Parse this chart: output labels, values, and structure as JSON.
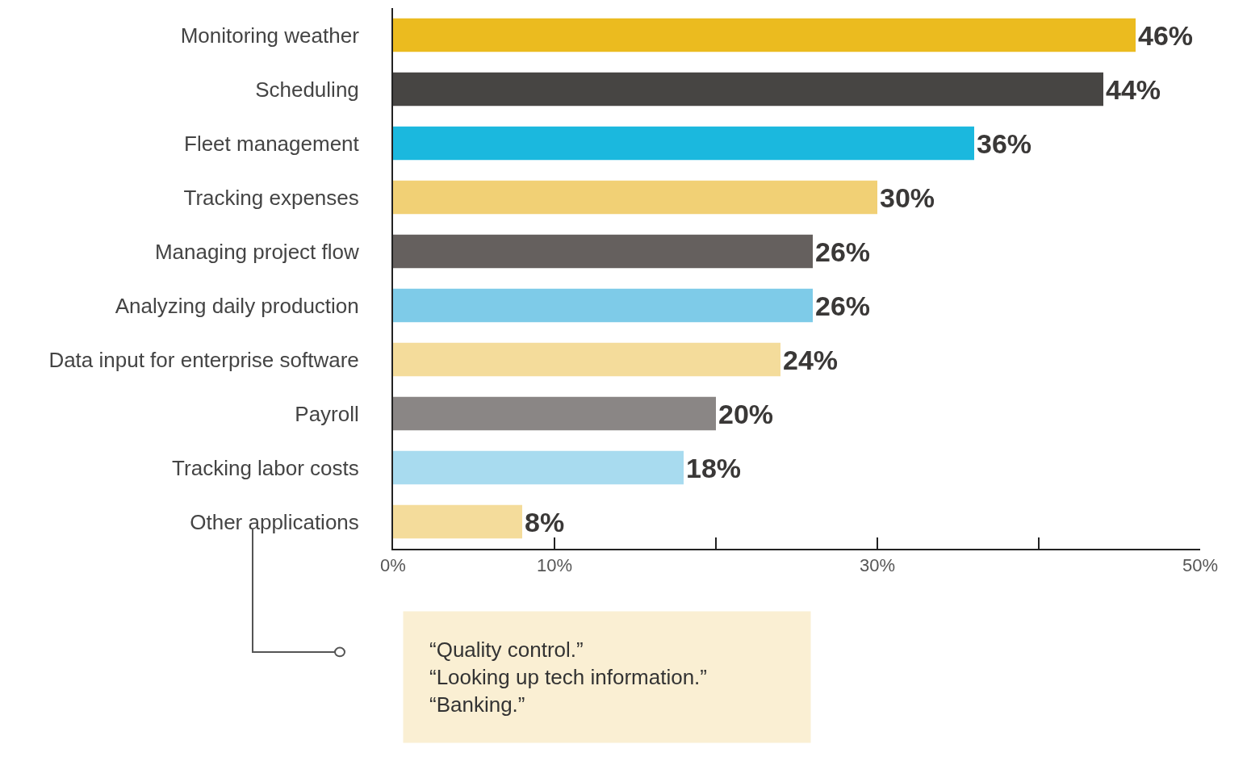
{
  "chart_data": {
    "type": "bar",
    "orientation": "horizontal",
    "categories": [
      "Monitoring weather",
      "Scheduling",
      "Fleet management",
      "Tracking expenses",
      "Managing project flow",
      "Analyzing daily production",
      "Data input for enterprise software",
      "Payroll",
      "Tracking labor costs",
      "Other applications"
    ],
    "values": [
      46,
      44,
      36,
      30,
      26,
      26,
      24,
      20,
      18,
      8
    ],
    "colors": [
      "#ebbb1f",
      "#474543",
      "#1bb8de",
      "#f1d075",
      "#65605e",
      "#7ecbe8",
      "#f4dc9b",
      "#8a8685",
      "#a8dbef",
      "#f4dc9b"
    ],
    "value_labels": [
      "46%",
      "44%",
      "36%",
      "30%",
      "26%",
      "26%",
      "24%",
      "20%",
      "18%",
      "8%"
    ],
    "xlim": [
      0,
      50
    ],
    "xticks": [
      {
        "value": 0,
        "label": "0%"
      },
      {
        "value": 10,
        "label": "10%"
      },
      {
        "value": 20,
        "label": null
      },
      {
        "value": 30,
        "label": "30%"
      },
      {
        "value": 40,
        "label": null
      },
      {
        "value": 50,
        "label": "50%"
      }
    ],
    "legend": false,
    "annotations": [
      "“Quality control.”\n“Looking up tech information.”\n“Banking.”"
    ]
  }
}
